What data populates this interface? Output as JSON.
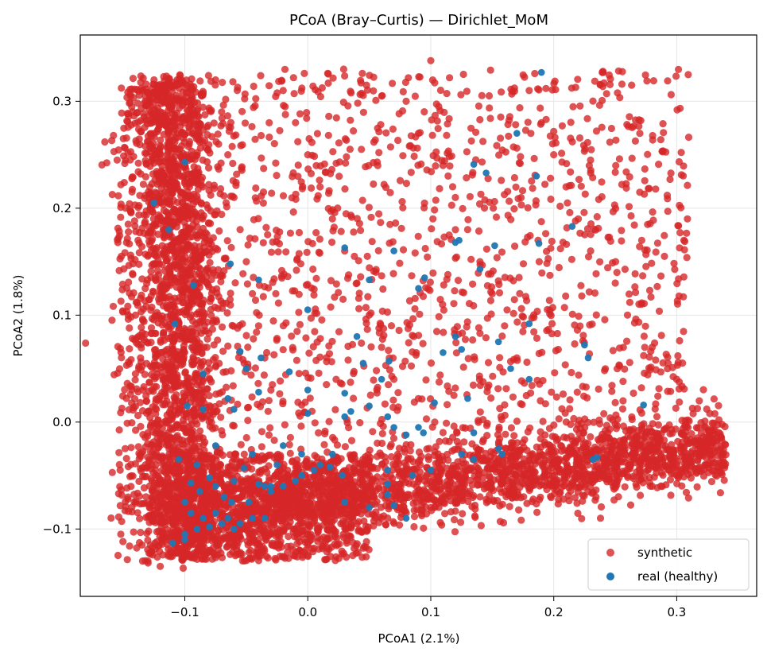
{
  "chart_data": {
    "type": "scatter",
    "title": "PCoA (Bray–Curtis) — Dirichlet_MoM",
    "xlabel": "PCoA1 (2.1%)",
    "ylabel": "PCoA2 (1.8%)",
    "xlim": [
      -0.185,
      0.365
    ],
    "ylim": [
      -0.163,
      0.362
    ],
    "xticks": [
      -0.1,
      0.0,
      0.1,
      0.2,
      0.3
    ],
    "xtick_labels": [
      "−0.1",
      "0.0",
      "0.1",
      "0.2",
      "0.3"
    ],
    "yticks": [
      -0.1,
      0.0,
      0.1,
      0.2,
      0.3
    ],
    "ytick_labels": [
      "−0.1",
      "0.0",
      "0.1",
      "0.2",
      "0.3"
    ],
    "grid": true,
    "legend_position": "bottom-right",
    "series": [
      {
        "name": "synthetic",
        "color": "#d62728",
        "approx_count": 6000,
        "points": [
          [
            -0.165,
            0.262
          ],
          [
            -0.158,
            0.268
          ],
          [
            -0.155,
            0.245
          ],
          [
            -0.152,
            0.222
          ],
          [
            -0.15,
            0.265
          ],
          [
            -0.148,
            0.2
          ],
          [
            -0.146,
            0.185
          ],
          [
            -0.144,
            0.156
          ],
          [
            -0.142,
            0.148
          ],
          [
            -0.14,
            0.1
          ],
          [
            -0.138,
            0.17
          ],
          [
            -0.136,
            0.06
          ],
          [
            -0.134,
            0.03
          ],
          [
            -0.132,
            -0.04
          ],
          [
            -0.13,
            -0.13
          ],
          [
            -0.128,
            -0.115
          ],
          [
            -0.126,
            -0.09
          ],
          [
            -0.125,
            0.32
          ],
          [
            -0.122,
            0.305
          ],
          [
            -0.12,
            0.29
          ],
          [
            -0.118,
            0.315
          ],
          [
            -0.116,
            0.28
          ],
          [
            -0.114,
            0.26
          ],
          [
            -0.112,
            0.295
          ],
          [
            -0.11,
            0.3
          ],
          [
            -0.108,
            0.285
          ],
          [
            -0.106,
            0.27
          ],
          [
            -0.104,
            0.255
          ],
          [
            -0.102,
            0.24
          ],
          [
            -0.1,
            0.225
          ],
          [
            -0.098,
            0.21
          ],
          [
            -0.096,
            0.195
          ],
          [
            -0.094,
            0.18
          ],
          [
            -0.092,
            0.165
          ],
          [
            -0.09,
            0.15
          ],
          [
            -0.088,
            0.13
          ],
          [
            -0.086,
            0.11
          ],
          [
            -0.084,
            0.09
          ],
          [
            -0.082,
            0.07
          ],
          [
            -0.08,
            0.05
          ],
          [
            -0.075,
            0.32
          ],
          [
            -0.07,
            0.29
          ],
          [
            -0.065,
            0.25
          ],
          [
            -0.06,
            0.21
          ],
          [
            -0.055,
            0.18
          ],
          [
            -0.05,
            0.15
          ],
          [
            -0.045,
            0.12
          ],
          [
            -0.04,
            0.09
          ],
          [
            -0.035,
            0.06
          ],
          [
            -0.03,
            0.03
          ],
          [
            -0.02,
            0.31
          ],
          [
            -0.01,
            0.28
          ],
          [
            0.0,
            0.25
          ],
          [
            0.01,
            0.22
          ],
          [
            0.02,
            0.19
          ],
          [
            0.03,
            0.16
          ],
          [
            0.04,
            0.13
          ],
          [
            0.05,
            0.1
          ],
          [
            0.06,
            0.07
          ],
          [
            0.07,
            0.04
          ],
          [
            0.08,
            0.3
          ],
          [
            0.09,
            0.27
          ],
          [
            0.1,
            0.338
          ],
          [
            0.11,
            0.24
          ],
          [
            0.12,
            0.21
          ],
          [
            0.13,
            0.18
          ],
          [
            0.14,
            0.15
          ],
          [
            0.15,
            0.12
          ],
          [
            0.16,
            0.09
          ],
          [
            0.17,
            0.06
          ],
          [
            0.18,
            0.31
          ],
          [
            0.19,
            0.28
          ],
          [
            0.2,
            0.25
          ],
          [
            0.21,
            0.22
          ],
          [
            0.22,
            0.19
          ],
          [
            0.23,
            0.16
          ],
          [
            0.24,
            0.328
          ],
          [
            0.25,
            0.13
          ],
          [
            0.26,
            0.1
          ],
          [
            0.27,
            0.27
          ],
          [
            0.28,
            0.07
          ],
          [
            0.29,
            0.155
          ],
          [
            0.3,
            0.04
          ],
          [
            0.31,
            -0.02
          ],
          [
            0.32,
            -0.03
          ],
          [
            0.33,
            -0.025
          ],
          [
            0.338,
            -0.026
          ],
          [
            0.325,
            -0.04
          ],
          [
            0.3,
            -0.05
          ],
          [
            0.28,
            -0.06
          ],
          [
            0.26,
            -0.05
          ],
          [
            0.24,
            -0.045
          ],
          [
            0.22,
            -0.05
          ],
          [
            0.2,
            -0.055
          ],
          [
            0.18,
            -0.06
          ],
          [
            0.16,
            -0.065
          ],
          [
            0.14,
            -0.07
          ],
          [
            0.12,
            -0.075
          ],
          [
            0.1,
            -0.08
          ],
          [
            0.08,
            -0.085
          ],
          [
            0.06,
            -0.09
          ],
          [
            0.04,
            -0.095
          ],
          [
            0.02,
            -0.1
          ],
          [
            0.0,
            -0.105
          ],
          [
            -0.02,
            -0.1
          ],
          [
            -0.04,
            -0.11
          ],
          [
            -0.06,
            -0.115
          ],
          [
            -0.08,
            -0.12
          ],
          [
            -0.1,
            -0.125
          ],
          [
            -0.12,
            -0.135
          ]
        ]
      },
      {
        "name": "real (healthy)",
        "color": "#1f77b4",
        "points": [
          [
            -0.125,
            0.205
          ],
          [
            -0.1,
            0.243
          ],
          [
            -0.113,
            0.18
          ],
          [
            -0.093,
            0.128
          ],
          [
            -0.108,
            0.092
          ],
          [
            -0.063,
            0.148
          ],
          [
            -0.085,
            0.045
          ],
          [
            -0.098,
            0.015
          ],
          [
            -0.085,
            0.012
          ],
          [
            -0.065,
            0.022
          ],
          [
            -0.06,
            0.012
          ],
          [
            -0.075,
            -0.022
          ],
          [
            -0.105,
            -0.035
          ],
          [
            -0.09,
            -0.04
          ],
          [
            -0.08,
            -0.052
          ],
          [
            -0.095,
            -0.057
          ],
          [
            -0.075,
            -0.06
          ],
          [
            -0.06,
            -0.055
          ],
          [
            -0.052,
            -0.043
          ],
          [
            -0.04,
            -0.058
          ],
          [
            -0.03,
            -0.06
          ],
          [
            -0.025,
            -0.04
          ],
          [
            -0.02,
            -0.022
          ],
          [
            -0.035,
            -0.06
          ],
          [
            -0.005,
            -0.05
          ],
          [
            0.005,
            -0.045
          ],
          [
            0.01,
            -0.04
          ],
          [
            0.018,
            -0.042
          ],
          [
            0.028,
            -0.05
          ],
          [
            -0.1,
            -0.075
          ],
          [
            -0.095,
            -0.085
          ],
          [
            -0.085,
            -0.09
          ],
          [
            -0.075,
            -0.085
          ],
          [
            -0.065,
            -0.09
          ],
          [
            -0.055,
            -0.095
          ],
          [
            -0.045,
            -0.09
          ],
          [
            -0.035,
            -0.09
          ],
          [
            -0.11,
            -0.113
          ],
          [
            -0.1,
            -0.105
          ],
          [
            -0.09,
            -0.1
          ],
          [
            -0.08,
            -0.098
          ],
          [
            -0.07,
            -0.095
          ],
          [
            -0.06,
            -0.1
          ],
          [
            -0.088,
            -0.065
          ],
          [
            -0.068,
            -0.07
          ],
          [
            -0.048,
            -0.075
          ],
          [
            -0.03,
            -0.065
          ],
          [
            0.03,
            0.163
          ],
          [
            0.07,
            0.16
          ],
          [
            0.05,
            0.133
          ],
          [
            -0.04,
            0.133
          ],
          [
            0.0,
            0.105
          ],
          [
            0.095,
            0.135
          ],
          [
            0.09,
            0.125
          ],
          [
            0.04,
            0.08
          ],
          [
            0.045,
            0.055
          ],
          [
            0.066,
            0.057
          ],
          [
            0.03,
            0.027
          ],
          [
            -0.015,
            0.047
          ],
          [
            -0.038,
            0.06
          ],
          [
            -0.055,
            0.066
          ],
          [
            -0.05,
            0.05
          ],
          [
            -0.04,
            0.028
          ],
          [
            0.0,
            0.03
          ],
          [
            0.0,
            0.008
          ],
          [
            0.03,
            0.005
          ],
          [
            0.05,
            0.015
          ],
          [
            0.065,
            0.005
          ],
          [
            0.07,
            -0.005
          ],
          [
            0.08,
            -0.012
          ],
          [
            0.09,
            -0.005
          ],
          [
            0.094,
            -0.01
          ],
          [
            0.103,
            0.018
          ],
          [
            0.13,
            0.022
          ],
          [
            0.125,
            0.068
          ],
          [
            0.12,
            0.08
          ],
          [
            0.14,
            0.143
          ],
          [
            0.12,
            0.168
          ],
          [
            0.123,
            0.17
          ],
          [
            0.152,
            0.165
          ],
          [
            0.135,
            0.241
          ],
          [
            0.145,
            0.233
          ],
          [
            0.17,
            0.27
          ],
          [
            0.19,
            0.327
          ],
          [
            0.186,
            0.23
          ],
          [
            0.188,
            0.167
          ],
          [
            0.215,
            0.183
          ],
          [
            0.18,
            0.092
          ],
          [
            0.18,
            0.04
          ],
          [
            0.155,
            0.075
          ],
          [
            0.165,
            0.05
          ],
          [
            0.225,
            0.072
          ],
          [
            0.228,
            0.06
          ],
          [
            0.273,
            0.016
          ],
          [
            0.135,
            -0.01
          ],
          [
            0.158,
            -0.03
          ],
          [
            0.135,
            -0.035
          ],
          [
            0.125,
            -0.03
          ],
          [
            0.1,
            -0.045
          ],
          [
            0.085,
            -0.05
          ],
          [
            0.065,
            -0.045
          ],
          [
            0.065,
            -0.058
          ],
          [
            0.05,
            -0.08
          ],
          [
            0.03,
            -0.075
          ],
          [
            0.07,
            -0.078
          ],
          [
            0.08,
            -0.09
          ],
          [
            0.065,
            -0.068
          ],
          [
            0.02,
            -0.03
          ],
          [
            -0.01,
            -0.055
          ],
          [
            -0.1,
            -0.11
          ],
          [
            0.235,
            -0.033
          ],
          [
            0.232,
            -0.035
          ],
          [
            0.155,
            -0.025
          ],
          [
            0.11,
            0.065
          ],
          [
            0.06,
            0.04
          ],
          [
            0.035,
            0.01
          ],
          [
            -0.005,
            -0.03
          ],
          [
            -0.045,
            -0.03
          ],
          [
            -0.02,
            -0.06
          ],
          [
            -0.062,
            -0.075
          ]
        ]
      }
    ]
  }
}
